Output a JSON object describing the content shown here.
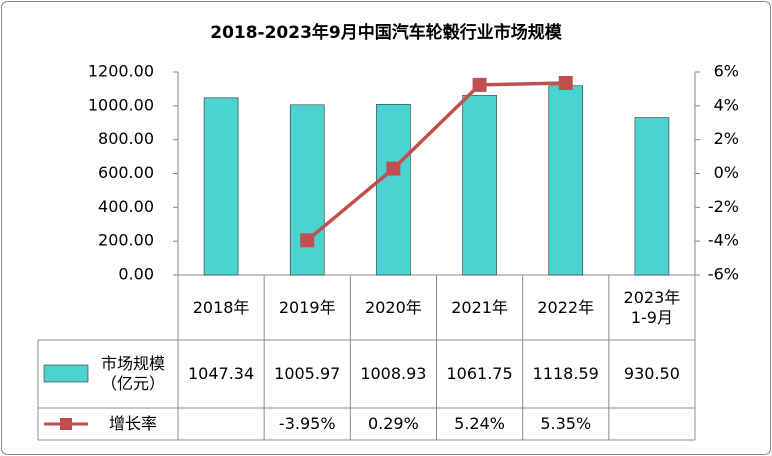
{
  "chart_data": {
    "type": "bar_line_table",
    "title": "2018-2023年9月中国汽车轮毂行业市场规模",
    "categories": [
      "2018年",
      "2019年",
      "2020年",
      "2021年",
      "2022年",
      "2023年\n1-9月"
    ],
    "series": [
      {
        "name": "市场规模\n（亿元）",
        "type": "bar",
        "color": "#4dd2d2",
        "axis": "y",
        "values": [
          1047.34,
          1005.97,
          1008.93,
          1061.75,
          1118.59,
          930.5
        ],
        "value_labels": [
          "1047.34",
          "1005.97",
          "1008.93",
          "1061.75",
          "1118.59",
          "930.50"
        ]
      },
      {
        "name": "增长率",
        "type": "line",
        "color": "#c0504d",
        "axis": "y2",
        "values": [
          null,
          -3.95,
          0.29,
          5.24,
          5.35,
          null
        ],
        "value_labels": [
          null,
          "-3.95%",
          "0.29%",
          "5.24%",
          "5.35%",
          null
        ]
      }
    ],
    "ylim": [
      0,
      1200
    ],
    "yticks": [
      {
        "value": 0,
        "label": "0.00"
      },
      {
        "value": 200,
        "label": "200.00"
      },
      {
        "value": 400,
        "label": "400.00"
      },
      {
        "value": 600,
        "label": "600.00"
      },
      {
        "value": 800,
        "label": "800.00"
      },
      {
        "value": 1000,
        "label": "1000.00"
      },
      {
        "value": 1200,
        "label": "1200.00"
      }
    ],
    "y2lim": [
      -6,
      6
    ],
    "y2ticks": [
      {
        "value": -6,
        "label": "-6%"
      },
      {
        "value": -4,
        "label": "-4%"
      },
      {
        "value": -2,
        "label": "-2%"
      },
      {
        "value": 0,
        "label": "0%"
      },
      {
        "value": 2,
        "label": "2%"
      },
      {
        "value": 4,
        "label": "4%"
      },
      {
        "value": 6,
        "label": "6%"
      }
    ],
    "grid": false
  }
}
